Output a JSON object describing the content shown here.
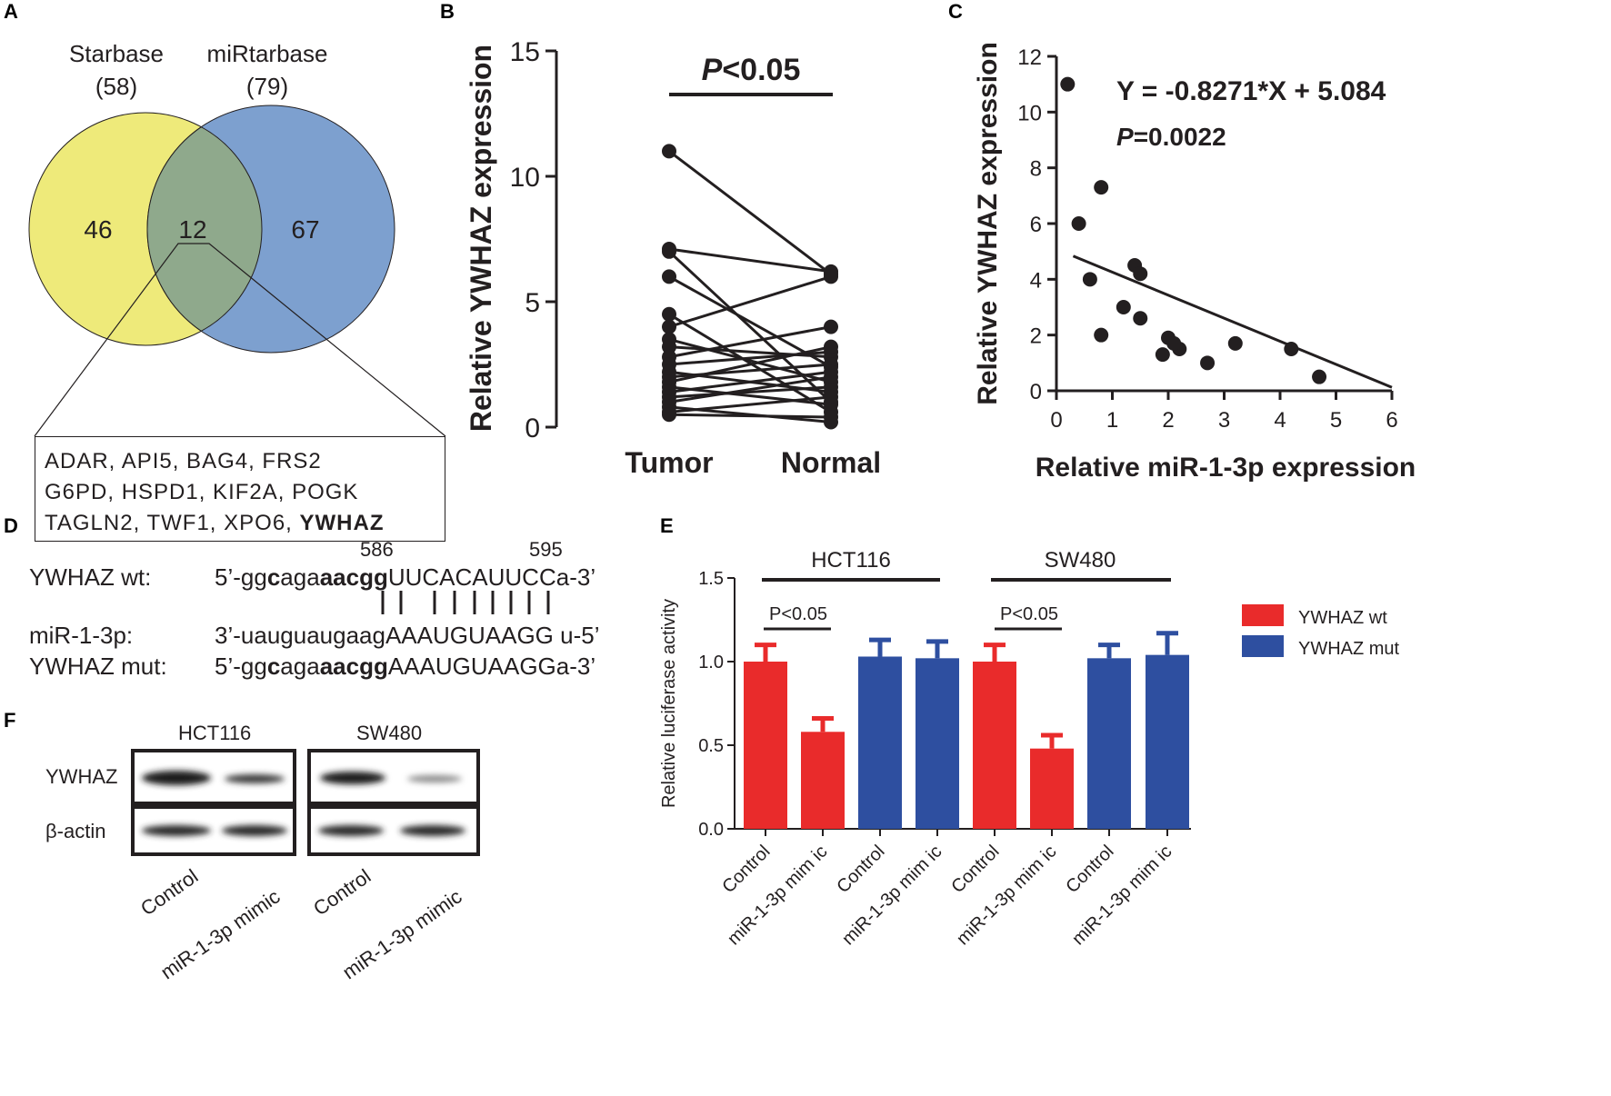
{
  "panels": [
    "A",
    "B",
    "C",
    "D",
    "E",
    "F"
  ],
  "venn": {
    "left_name": "Starbase",
    "left_count": "(58)",
    "right_name": "miRtarbase",
    "right_count": "(79)",
    "only_left": "46",
    "overlap": "12",
    "only_right": "67",
    "left_color": "#eeea7a",
    "right_color": "#7da0cf",
    "overlap_color": "#8fa98c",
    "genes": {
      "line1": "ADAR,  API5,  BAG4,  FRS2",
      "line2": "G6PD,  HSPD1,  KIF2A,  POGK",
      "line3_plain": "TAGLN2,  TWF1,  XPO6,  ",
      "line3_bold": "YWHAZ"
    }
  },
  "chart_data": [
    {
      "panel": "B",
      "type": "paired-line",
      "title": "",
      "annotation": "P<0.05",
      "annotation_italic": "P",
      "annotation_rest": "<0.05",
      "ylabel": "Relative YWHAZ expression",
      "categories": [
        "Tumor",
        "Normal"
      ],
      "ylim": [
        0,
        15
      ],
      "yticks": [
        "0",
        "5",
        "10",
        "15"
      ],
      "pairs": [
        [
          11.0,
          6.1
        ],
        [
          7.1,
          6.2
        ],
        [
          7.0,
          1.0
        ],
        [
          6.0,
          2.4
        ],
        [
          4.5,
          0.6
        ],
        [
          4.0,
          6.0
        ],
        [
          3.5,
          1.8
        ],
        [
          3.2,
          2.8
        ],
        [
          2.8,
          4.0
        ],
        [
          2.5,
          3.0
        ],
        [
          2.2,
          1.4
        ],
        [
          2.0,
          2.5
        ],
        [
          1.8,
          3.2
        ],
        [
          1.6,
          0.9
        ],
        [
          1.4,
          2.2
        ],
        [
          1.2,
          1.6
        ],
        [
          1.0,
          2.0
        ],
        [
          0.8,
          0.2
        ],
        [
          0.6,
          1.2
        ],
        [
          0.5,
          0.4
        ]
      ]
    },
    {
      "panel": "C",
      "type": "scatter",
      "title": "",
      "equation": "Y = -0.8271*X + 5.084",
      "pvalue_italic": "P",
      "pvalue_rest": "=0.0022",
      "xlabel": "Relative miR-1-3p expression",
      "ylabel": "Relative YWHAZ expression",
      "xlim": [
        0,
        6
      ],
      "ylim": [
        0,
        12
      ],
      "xticks": [
        "0",
        "1",
        "2",
        "3",
        "4",
        "5",
        "6"
      ],
      "yticks": [
        "0",
        "2",
        "4",
        "6",
        "8",
        "10",
        "12"
      ],
      "points": [
        [
          0.5,
          11.0
        ],
        [
          0.7,
          6.0
        ],
        [
          1.1,
          7.3
        ],
        [
          0.9,
          4.0
        ],
        [
          1.1,
          2.0
        ],
        [
          1.5,
          3.0
        ],
        [
          1.7,
          4.5
        ],
        [
          1.8,
          4.2
        ],
        [
          1.8,
          2.6
        ],
        [
          2.2,
          1.3
        ],
        [
          2.3,
          1.9
        ],
        [
          2.5,
          1.5
        ],
        [
          3.0,
          1.0
        ],
        [
          3.5,
          1.7
        ],
        [
          4.5,
          1.5
        ],
        [
          5.0,
          0.5
        ],
        [
          2.4,
          1.7
        ]
      ],
      "fit": {
        "slope": -0.8271,
        "intercept": 5.084
      }
    },
    {
      "panel": "E",
      "type": "bar",
      "title": "",
      "ylabel": "Relative luciferase activity",
      "ylim": [
        0,
        1.5
      ],
      "yticks": [
        "0.0",
        "0.5",
        "1.0",
        "1.5"
      ],
      "groups": [
        "HCT116",
        "SW480"
      ],
      "comparisons": [
        "P<0.05",
        "P<0.05"
      ],
      "categories": [
        "Control",
        "miR-1-3p mim ic",
        "Control",
        "miR-1-3p mim ic",
        "Control",
        "miR-1-3p mim ic",
        "Control",
        "miR-1-3p mim ic"
      ],
      "values": [
        1.0,
        0.58,
        1.03,
        1.02,
        1.0,
        0.48,
        1.02,
        1.04
      ],
      "errors": [
        0.1,
        0.08,
        0.1,
        0.1,
        0.1,
        0.08,
        0.08,
        0.13
      ],
      "series_of_bar": [
        0,
        0,
        1,
        1,
        0,
        0,
        1,
        1
      ],
      "series": [
        {
          "name": "YWHAZ wt",
          "color": "#e92b2b"
        },
        {
          "name": "YWHAZ mut",
          "color": "#2e4fa0"
        }
      ]
    }
  ],
  "sequences": {
    "pos_start": "586",
    "pos_end": "595",
    "wt_label": "YWHAZ wt:",
    "wt_pre": "5’-gg",
    "wt_b1": "c",
    "wt_m1": "aga",
    "wt_b2": "aacgg",
    "wt_upper": "UUCACAUUCC",
    "wt_post": "a-3’",
    "mir_label": "miR-1-3p:",
    "mir_pre": "3’-uauguaugaag",
    "mir_upper": "AAAUGUAAGG",
    "mir_post": " u-5’",
    "mut_label": "YWHAZ mut:",
    "mut_pre": "5’-gg",
    "mut_b1": "c",
    "mut_m1": "aga",
    "mut_b2": "aacgg",
    "mut_upper": "AAAUGUAAGG",
    "mut_post": "a-3’"
  },
  "blot": {
    "cell_lines": [
      "HCT116",
      "SW480"
    ],
    "rows": [
      "YWHAZ",
      "β-actin"
    ],
    "lanes": [
      "Control",
      "miR-1-3p mimic",
      "Control",
      "miR-1-3p mimic"
    ]
  }
}
